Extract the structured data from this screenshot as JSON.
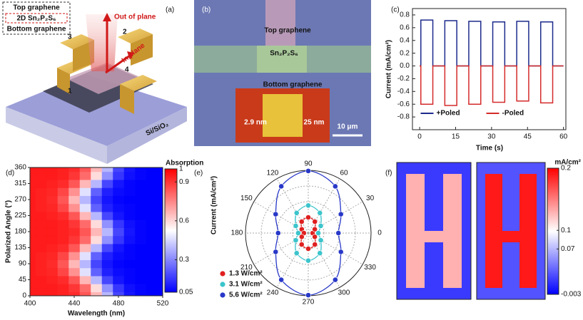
{
  "panel_a": {
    "label": "(a)",
    "legend": [
      "Top graphene",
      "2D Sn₂P₂S₆",
      "Bottom graphene"
    ],
    "arrows": [
      "Out of plane",
      "In plane"
    ],
    "electrodes": [
      "1",
      "2",
      "3",
      "4"
    ],
    "substrate": "Si/SiO₂"
  },
  "panel_b": {
    "label": "(b)",
    "top": "Top graphene",
    "middle": "Sn₂P₂S₆",
    "bottom": "Bottom graphene",
    "inset": [
      "2.9 nm",
      "25 nm"
    ],
    "scale_bar": "10 μm"
  },
  "chart_data": [
    {
      "type": "line",
      "label": "(c)",
      "xlabel": "Time (s)",
      "ylabel": "Current (mA/cm²)",
      "x": [
        0,
        0.5,
        0.5,
        5.5,
        5.5,
        10.5,
        10.5,
        15.5,
        15.5,
        20.5,
        20.5,
        25.5,
        25.5,
        30.5,
        30.5,
        35.5,
        35.5,
        40.5,
        40.5,
        45.5,
        45.5,
        50.5,
        50.5,
        55.5,
        55.5,
        60
      ],
      "series": [
        {
          "name": "+Poled",
          "color": "#1c2a8c",
          "values": [
            0,
            0,
            0.72,
            0.72,
            0,
            0,
            0.71,
            0.71,
            0,
            0,
            0.7,
            0.7,
            0,
            0,
            0.69,
            0.69,
            0,
            0,
            0.7,
            0.7,
            0,
            0,
            0.69,
            0.69,
            0,
            0
          ]
        },
        {
          "name": "-Poled",
          "color": "#d42a2a",
          "values": [
            0,
            0,
            -0.6,
            -0.6,
            0,
            0,
            -0.62,
            -0.62,
            0,
            0,
            -0.6,
            -0.6,
            0,
            0,
            -0.57,
            -0.57,
            0,
            0,
            -0.55,
            -0.55,
            0,
            0,
            -0.58,
            -0.58,
            0,
            0
          ]
        }
      ],
      "xlim": [
        -3,
        61
      ],
      "ylim": [
        -1.0,
        0.9
      ],
      "xticks": [
        0,
        15,
        30,
        45,
        60
      ],
      "yticks": [
        0.8,
        0.6,
        0.4,
        0.2,
        {
          "value": 0,
          "label": "0.0"
        },
        -0.2,
        -0.4,
        -0.6,
        -0.8
      ],
      "legend": "lower center"
    },
    {
      "type": "heatmap",
      "label": "(d)",
      "xlabel": "Wavelength (nm)",
      "ylabel": "Polarized Angle (°)",
      "x": [
        400,
        410,
        420,
        430,
        440,
        450,
        460,
        470,
        480,
        490,
        500,
        510,
        520
      ],
      "y": [
        0,
        22.5,
        45,
        67.5,
        90,
        112.5,
        135,
        157.5,
        180,
        202.5,
        225,
        247.5,
        270,
        292.5,
        315,
        337.5,
        360
      ],
      "values": [
        [
          0.95,
          0.95,
          0.95,
          0.94,
          0.92,
          0.84,
          0.66,
          0.39,
          0.18,
          0.09,
          0.06,
          0.05,
          0.05
        ],
        [
          0.95,
          0.95,
          0.95,
          0.94,
          0.9,
          0.8,
          0.59,
          0.32,
          0.15,
          0.08,
          0.06,
          0.05,
          0.05
        ],
        [
          0.95,
          0.95,
          0.94,
          0.92,
          0.84,
          0.66,
          0.39,
          0.18,
          0.09,
          0.06,
          0.05,
          0.05,
          0.05
        ],
        [
          0.95,
          0.94,
          0.93,
          0.87,
          0.73,
          0.47,
          0.23,
          0.11,
          0.07,
          0.06,
          0.05,
          0.05,
          0.05
        ],
        [
          0.95,
          0.94,
          0.92,
          0.84,
          0.66,
          0.39,
          0.18,
          0.09,
          0.06,
          0.05,
          0.05,
          0.05,
          0.05
        ],
        [
          0.95,
          0.94,
          0.93,
          0.87,
          0.73,
          0.47,
          0.23,
          0.11,
          0.07,
          0.06,
          0.05,
          0.05,
          0.05
        ],
        [
          0.95,
          0.95,
          0.94,
          0.92,
          0.84,
          0.66,
          0.39,
          0.18,
          0.09,
          0.06,
          0.05,
          0.05,
          0.05
        ],
        [
          0.95,
          0.95,
          0.95,
          0.94,
          0.9,
          0.8,
          0.59,
          0.32,
          0.15,
          0.08,
          0.06,
          0.05,
          0.05
        ],
        [
          0.95,
          0.95,
          0.95,
          0.94,
          0.92,
          0.84,
          0.66,
          0.39,
          0.18,
          0.09,
          0.06,
          0.05,
          0.05
        ],
        [
          0.95,
          0.95,
          0.95,
          0.94,
          0.9,
          0.8,
          0.59,
          0.32,
          0.15,
          0.08,
          0.06,
          0.05,
          0.05
        ],
        [
          0.95,
          0.95,
          0.94,
          0.92,
          0.84,
          0.66,
          0.39,
          0.18,
          0.09,
          0.06,
          0.05,
          0.05,
          0.05
        ],
        [
          0.95,
          0.94,
          0.93,
          0.87,
          0.73,
          0.47,
          0.23,
          0.11,
          0.07,
          0.06,
          0.05,
          0.05,
          0.05
        ],
        [
          0.95,
          0.94,
          0.92,
          0.84,
          0.66,
          0.39,
          0.18,
          0.09,
          0.06,
          0.05,
          0.05,
          0.05,
          0.05
        ],
        [
          0.95,
          0.94,
          0.93,
          0.87,
          0.73,
          0.47,
          0.23,
          0.11,
          0.07,
          0.06,
          0.05,
          0.05,
          0.05
        ],
        [
          0.95,
          0.95,
          0.94,
          0.92,
          0.84,
          0.66,
          0.39,
          0.18,
          0.09,
          0.06,
          0.05,
          0.05,
          0.05
        ],
        [
          0.95,
          0.95,
          0.95,
          0.94,
          0.9,
          0.8,
          0.59,
          0.32,
          0.15,
          0.08,
          0.06,
          0.05,
          0.05
        ],
        [
          0.95,
          0.95,
          0.95,
          0.94,
          0.92,
          0.84,
          0.66,
          0.39,
          0.18,
          0.09,
          0.06,
          0.05,
          0.05
        ]
      ],
      "xlim": [
        400,
        520
      ],
      "ylim": [
        0,
        360
      ],
      "xticks": [
        400,
        440,
        480,
        520
      ],
      "yticks": [
        0,
        45,
        90,
        135,
        180,
        225,
        270,
        315,
        360
      ],
      "colormap": [
        "#0000ff",
        "#ffffff",
        "#ff0000"
      ],
      "colorbar": {
        "title": "Absorption",
        "lim": [
          0.05,
          1
        ],
        "ticks": [
          1,
          0.9,
          0.6,
          0.3,
          0.05
        ]
      }
    },
    {
      "type": "polar",
      "label": "(e)",
      "rlabel": "Current (mA/cm²)",
      "theta": [
        0,
        30,
        60,
        90,
        120,
        150,
        180,
        210,
        240,
        270,
        300,
        330
      ],
      "thetaticks": [
        0,
        30,
        60,
        90,
        120,
        150,
        180,
        210,
        240,
        270,
        300,
        330
      ],
      "rlim": [
        0,
        1
      ],
      "rticks": [
        0.25,
        0.5,
        0.75,
        1
      ],
      "series": [
        {
          "name": "1.3 W/cm²",
          "color": "#e02020",
          "values": [
            0.07,
            0.12,
            0.21,
            0.25,
            0.21,
            0.12,
            0.07,
            0.12,
            0.21,
            0.25,
            0.21,
            0.12
          ]
        },
        {
          "name": "3.1 W/cm²",
          "color": "#3cc4cc",
          "values": [
            0.16,
            0.23,
            0.37,
            0.44,
            0.37,
            0.23,
            0.16,
            0.23,
            0.37,
            0.44,
            0.37,
            0.23
          ]
        },
        {
          "name": "5.6 W/cm²",
          "color": "#2838c8",
          "values": [
            0.48,
            0.6,
            0.86,
            0.99,
            0.86,
            0.6,
            0.48,
            0.6,
            0.86,
            0.99,
            0.86,
            0.6
          ]
        }
      ]
    },
    {
      "type": "map",
      "label": "(f)",
      "colormap": [
        "#0000ff",
        "#ffffff",
        "#ff0000"
      ],
      "colorbar": {
        "title": "mA/cm²",
        "lim": [
          -0.003,
          0.2
        ],
        "ticks": [
          0.2,
          0.1,
          0.07,
          -0.003
        ]
      },
      "images": [
        {
          "values": [
            [
              0.02,
              0.02,
              0.02,
              0.02,
              0.02,
              0.02,
              0.02,
              0.02
            ],
            [
              0.02,
              0.13,
              0.13,
              0.02,
              0.02,
              0.13,
              0.13,
              0.02
            ],
            [
              0.02,
              0.13,
              0.13,
              0.02,
              0.02,
              0.13,
              0.13,
              0.02
            ],
            [
              0.02,
              0.13,
              0.13,
              0.02,
              0.02,
              0.13,
              0.13,
              0.02
            ],
            [
              0.02,
              0.13,
              0.13,
              0.02,
              0.02,
              0.13,
              0.13,
              0.02
            ],
            [
              0.02,
              0.13,
              0.13,
              0.02,
              0.02,
              0.13,
              0.13,
              0.02
            ],
            [
              0.02,
              0.13,
              0.13,
              0.13,
              0.13,
              0.13,
              0.13,
              0.02
            ],
            [
              0.02,
              0.13,
              0.13,
              0.02,
              0.02,
              0.13,
              0.13,
              0.02
            ],
            [
              0.02,
              0.13,
              0.13,
              0.02,
              0.02,
              0.13,
              0.13,
              0.02
            ],
            [
              0.02,
              0.13,
              0.13,
              0.02,
              0.02,
              0.13,
              0.13,
              0.02
            ],
            [
              0.02,
              0.13,
              0.13,
              0.02,
              0.02,
              0.13,
              0.13,
              0.02
            ],
            [
              0.02,
              0.02,
              0.02,
              0.02,
              0.02,
              0.02,
              0.02,
              0.02
            ]
          ]
        },
        {
          "values": [
            [
              0.03,
              0.03,
              0.03,
              0.03,
              0.03,
              0.03,
              0.03,
              0.03
            ],
            [
              0.03,
              0.19,
              0.19,
              0.03,
              0.03,
              0.19,
              0.19,
              0.03
            ],
            [
              0.03,
              0.19,
              0.19,
              0.03,
              0.03,
              0.19,
              0.19,
              0.03
            ],
            [
              0.03,
              0.19,
              0.19,
              0.03,
              0.03,
              0.19,
              0.19,
              0.03
            ],
            [
              0.03,
              0.19,
              0.19,
              0.03,
              0.03,
              0.19,
              0.19,
              0.03
            ],
            [
              0.03,
              0.19,
              0.19,
              0.03,
              0.03,
              0.19,
              0.19,
              0.03
            ],
            [
              0.03,
              0.19,
              0.19,
              0.19,
              0.19,
              0.19,
              0.19,
              0.03
            ],
            [
              0.03,
              0.19,
              0.19,
              0.03,
              0.03,
              0.19,
              0.19,
              0.03
            ],
            [
              0.03,
              0.19,
              0.19,
              0.03,
              0.03,
              0.19,
              0.19,
              0.03
            ],
            [
              0.03,
              0.19,
              0.19,
              0.03,
              0.03,
              0.19,
              0.19,
              0.03
            ],
            [
              0.03,
              0.19,
              0.19,
              0.03,
              0.03,
              0.19,
              0.19,
              0.03
            ],
            [
              0.03,
              0.03,
              0.03,
              0.03,
              0.03,
              0.03,
              0.03,
              0.03
            ]
          ]
        }
      ]
    }
  ]
}
